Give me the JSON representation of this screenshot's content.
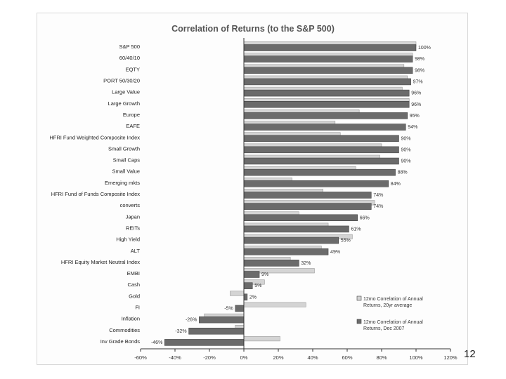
{
  "page": {
    "number": "12"
  },
  "chart_data": {
    "type": "bar",
    "orientation": "horizontal",
    "title": "Correlation of Returns (to the S&P 500)",
    "xlim": [
      -60,
      120
    ],
    "x_ticks": [
      -60,
      -40,
      -20,
      0,
      20,
      40,
      60,
      80,
      100,
      120
    ],
    "x_tick_labels": [
      "-60%",
      "-40%",
      "-20%",
      "0%",
      "20%",
      "40%",
      "60%",
      "80%",
      "100%",
      "120%"
    ],
    "categories": [
      "S&P 500",
      "60/40/10",
      "EQTY",
      "PORT 50/30/20",
      "Large Value",
      "Large Growth",
      "Europe",
      "EAFE",
      "HFRI Fund Weighted Composite Index",
      "Small Growth",
      "Small Caps",
      "Small Value",
      "Emerging mkts",
      "HFRI Fund of Funds Composite Index",
      "converts",
      "Japan",
      "REITs",
      "High Yield",
      "ALT",
      "HFRI Equity Market Neutral Index",
      "EMBI",
      "Cash",
      "Gold",
      "FI",
      "Inflation",
      "Commodities",
      "Inv Grade Bonds"
    ],
    "series": [
      {
        "name": "12mo Correlation of Annual Returns, 20yr average",
        "color": "#d4d4d4",
        "values": [
          100,
          98,
          93,
          95,
          92,
          96,
          67,
          53,
          56,
          80,
          79,
          65,
          28,
          46,
          76,
          32,
          49,
          63,
          45,
          27,
          41,
          12,
          -8,
          36,
          -23,
          -5,
          21
        ]
      },
      {
        "name": "12mo Correlation of Annual Returns, Dec 2007",
        "color": "#6b6b6b",
        "values": [
          100,
          98,
          98,
          97,
          96,
          96,
          95,
          94,
          90,
          90,
          90,
          88,
          84,
          74,
          74,
          66,
          61,
          55,
          49,
          32,
          9,
          5,
          2,
          -5,
          -26,
          -32,
          -46
        ]
      }
    ],
    "data_labels": [
      "100%",
      "98%",
      "98%",
      "97%",
      "96%",
      "96%",
      "95%",
      "94%",
      "90%",
      "90%",
      "90%",
      "88%",
      "84%",
      "74%",
      "74%",
      "66%",
      "61%",
      "55%",
      "49%",
      "32%",
      "9%",
      "5%",
      "2%",
      "-5%",
      "-26%",
      "-32%",
      "-46%"
    ],
    "legend": {
      "placement": "bottom-right",
      "entries": [
        [
          "12mo Correlation of Annual",
          "Returns, 20yr average"
        ],
        [
          "12mo Correlation of Annual",
          "Returns, Dec 2007"
        ]
      ]
    },
    "grid": false
  }
}
